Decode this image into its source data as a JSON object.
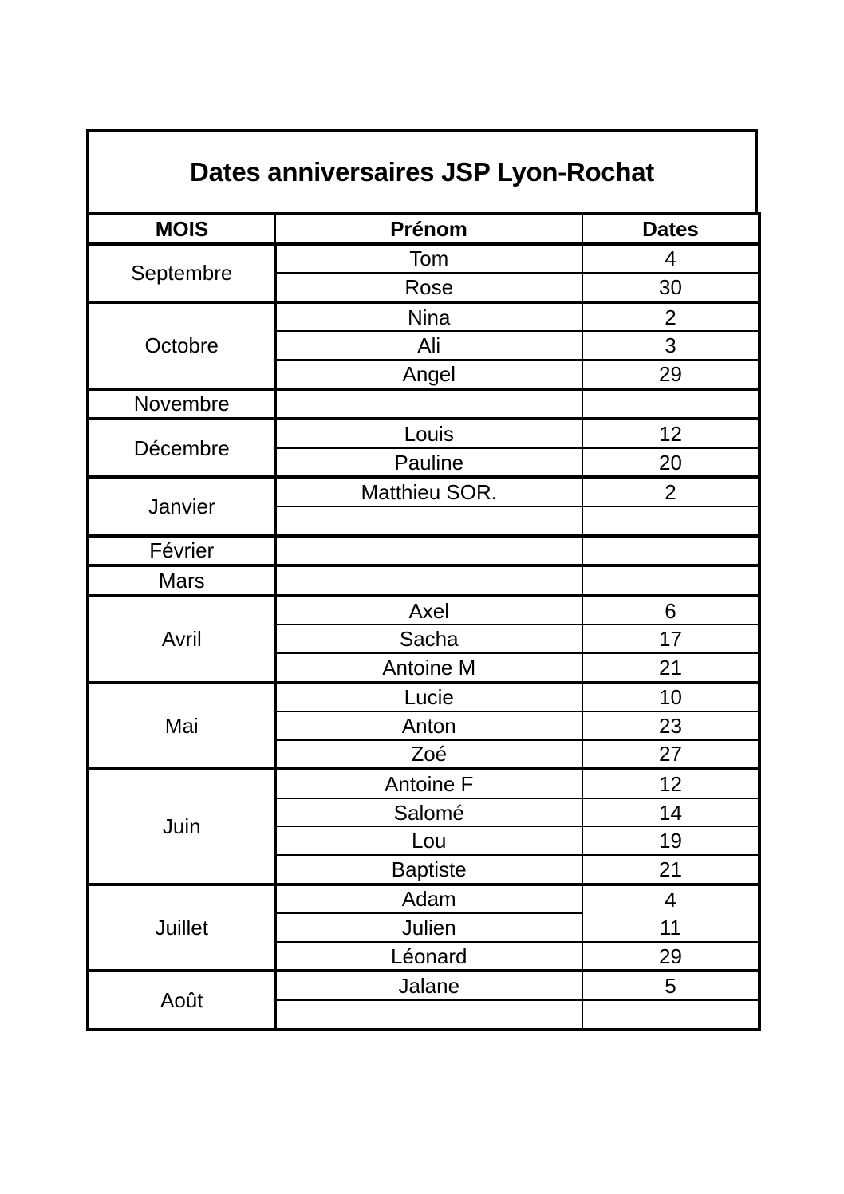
{
  "title": "Dates anniversaires JSP Lyon-Rochat",
  "headers": {
    "mois": "MOIS",
    "prenom": "Prénom",
    "dates": "Dates"
  },
  "months": [
    {
      "mois": "Septembre",
      "entries": [
        {
          "prenom": "Tom",
          "date": "4"
        },
        {
          "prenom": "Rose",
          "date": "30"
        }
      ]
    },
    {
      "mois": "Octobre",
      "entries": [
        {
          "prenom": "Nina",
          "date": "2"
        },
        {
          "prenom": "Ali",
          "date": "3"
        },
        {
          "prenom": "Angel",
          "date": "29"
        }
      ]
    },
    {
      "mois": "Novembre",
      "entries": [
        {
          "prenom": "",
          "date": ""
        }
      ]
    },
    {
      "mois": "Décembre",
      "entries": [
        {
          "prenom": "Louis",
          "date": "12"
        },
        {
          "prenom": "Pauline",
          "date": "20"
        }
      ]
    },
    {
      "mois": "Janvier",
      "entries": [
        {
          "prenom": "Matthieu SOR.",
          "date": "2"
        },
        {
          "prenom": "",
          "date": ""
        }
      ]
    },
    {
      "mois": "Février",
      "entries": [
        {
          "prenom": "",
          "date": ""
        }
      ]
    },
    {
      "mois": "Mars",
      "entries": [
        {
          "prenom": "",
          "date": ""
        }
      ]
    },
    {
      "mois": "Avril",
      "entries": [
        {
          "prenom": "Axel",
          "date": "6"
        },
        {
          "prenom": "Sacha",
          "date": "17"
        },
        {
          "prenom": "Antoine M",
          "date": "21"
        }
      ]
    },
    {
      "mois": "Mai",
      "entries": [
        {
          "prenom": "Lucie",
          "date": "10"
        },
        {
          "prenom": "Anton",
          "date": "23"
        },
        {
          "prenom": "Zoé",
          "date": "27"
        }
      ]
    },
    {
      "mois": "Juin",
      "entries": [
        {
          "prenom": "Antoine F",
          "date": "12"
        },
        {
          "prenom": "Salomé",
          "date": "14"
        },
        {
          "prenom": "Lou",
          "date": "19"
        },
        {
          "prenom": "Baptiste",
          "date": "21"
        }
      ]
    },
    {
      "mois": "Juillet",
      "entries": [
        {
          "prenom": "Adam",
          "date": "4"
        },
        {
          "prenom": "Julien",
          "date": "11"
        },
        {
          "prenom": "Léonard",
          "date": "29"
        }
      ]
    },
    {
      "mois": "Août",
      "entries": [
        {
          "prenom": "Jalane",
          "date": "5"
        },
        {
          "prenom": "",
          "date": ""
        }
      ]
    }
  ]
}
